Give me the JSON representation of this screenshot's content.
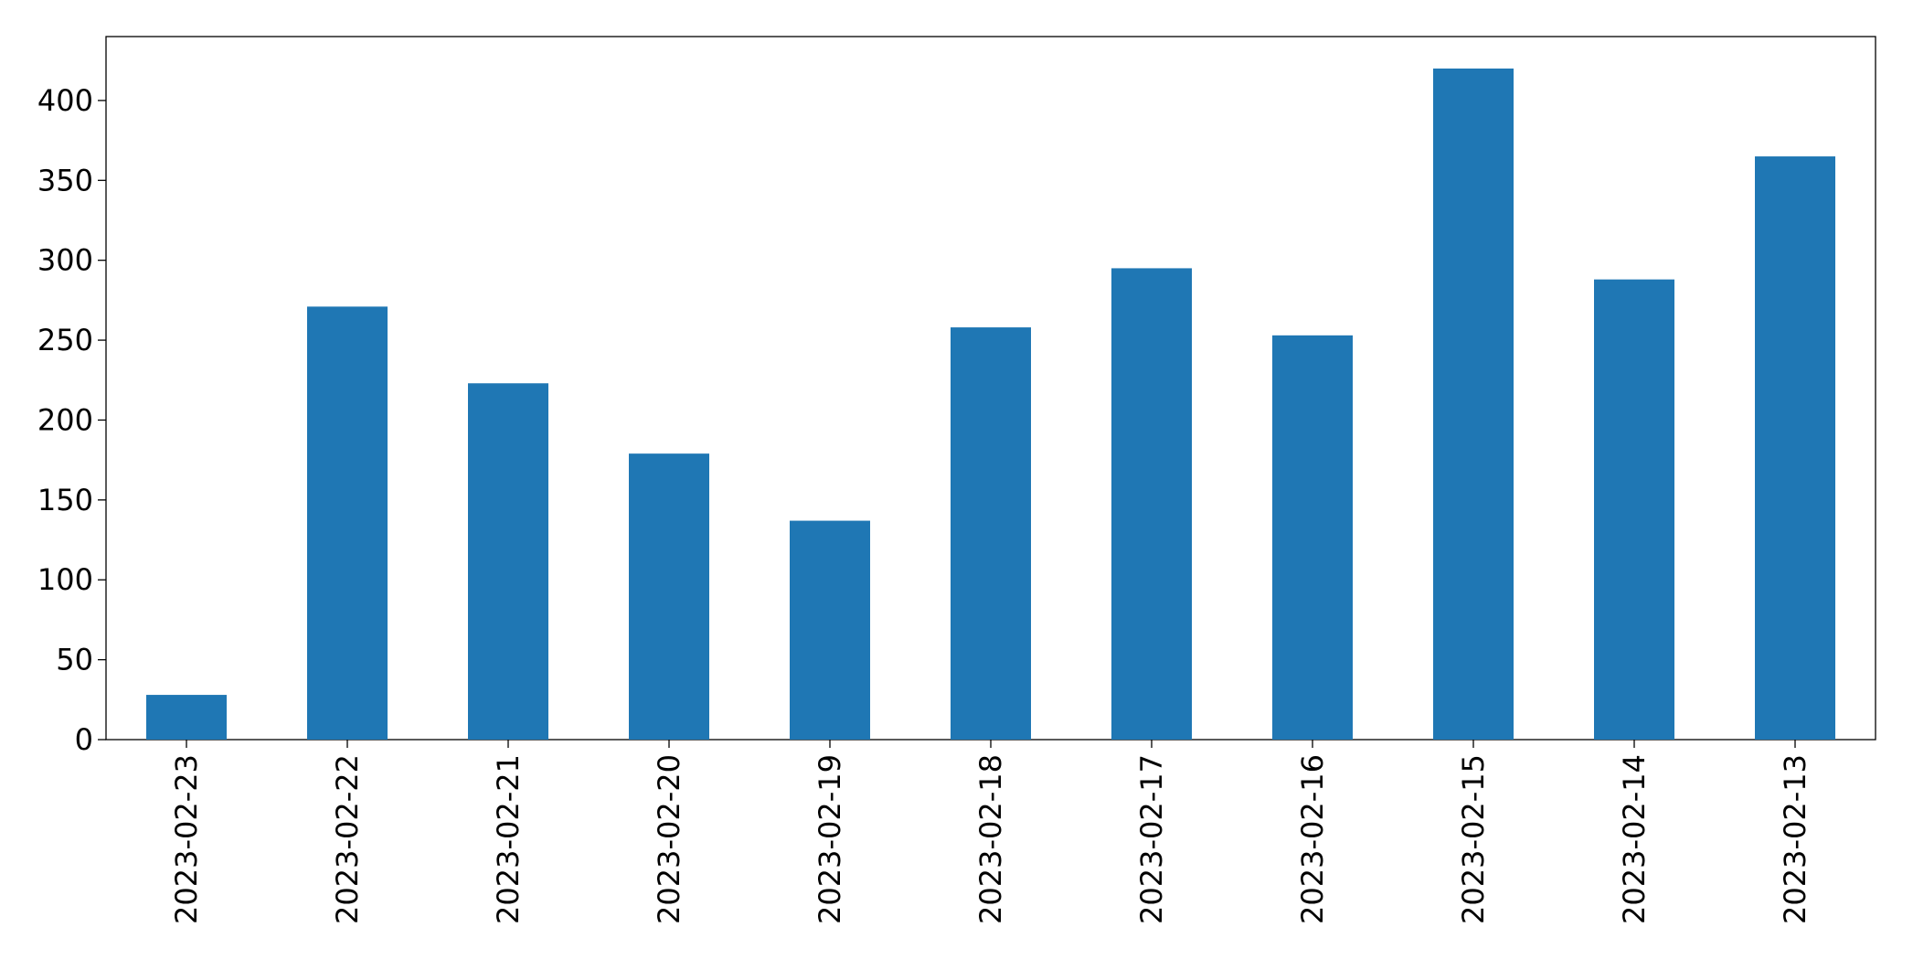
{
  "chart_data": {
    "type": "bar",
    "categories": [
      "2023-02-23",
      "2023-02-22",
      "2023-02-21",
      "2023-02-20",
      "2023-02-19",
      "2023-02-18",
      "2023-02-17",
      "2023-02-16",
      "2023-02-15",
      "2023-02-14",
      "2023-02-13"
    ],
    "values": [
      28,
      271,
      223,
      179,
      137,
      258,
      295,
      253,
      420,
      288,
      365
    ],
    "color": "#1f77b4",
    "ylim": [
      0,
      440
    ],
    "yticks": [
      0,
      50,
      100,
      150,
      200,
      250,
      300,
      350,
      400
    ],
    "grid": false
  }
}
